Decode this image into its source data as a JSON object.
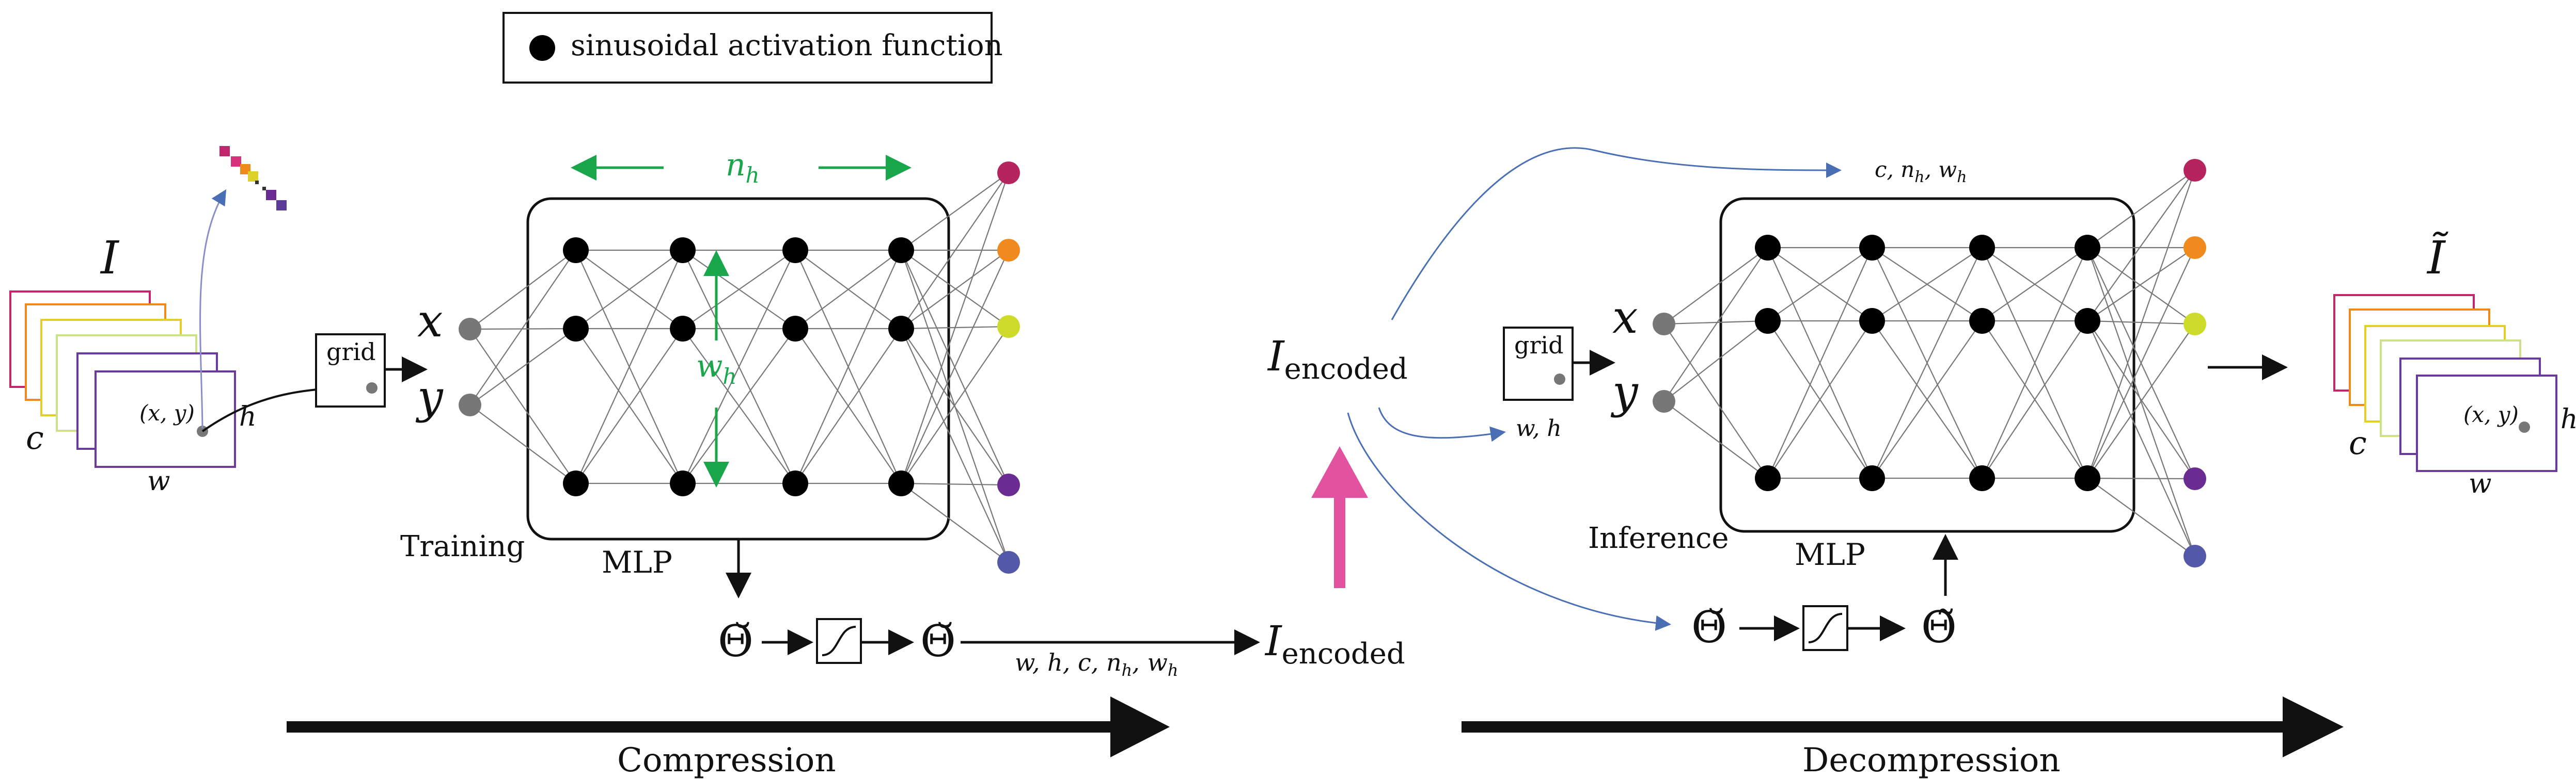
{
  "legend": {
    "label": "sinusoidal activation function"
  },
  "left": {
    "image_symbol": "I",
    "channel_label": "c",
    "width_label": "w",
    "height_label": "h",
    "coord_label": "(x, y)",
    "grid_label": "grid",
    "x_label": "x",
    "y_label": "y",
    "nh_label": "n",
    "nh_sub": "h",
    "wh_label": "w",
    "wh_sub": "h",
    "training_label": "Training",
    "mlp_label": "MLP",
    "theta_label": "Θ̆",
    "params_label": "w,  h,  c,  n",
    "params_sub": "h",
    "params_tail": ",  w",
    "params_tail_sub": "h",
    "encoded_label": "I",
    "encoded_sub": "encoded",
    "section_label": "Compression"
  },
  "right": {
    "encoded_label": "I",
    "encoded_sub": "encoded",
    "meta_label": "c, n",
    "meta_sub": "h",
    "meta_tail": ", w",
    "meta_tail_sub": "h",
    "wh_label": "w, h",
    "grid_label": "grid",
    "x_label": "x",
    "y_label": "y",
    "inference_label": "Inference",
    "mlp_label": "MLP",
    "theta_in_label": "Θ̆",
    "theta_out_label": "Θ̃",
    "image_symbol": "Ĩ",
    "channel_label": "c",
    "width_label": "w",
    "height_label": "h",
    "coord_label": "(x, y)",
    "section_label": "Decompression"
  },
  "colors": {
    "output_nodes": [
      "#b5245e",
      "#f08a1e",
      "#cddc2a",
      "#6a2c91",
      "#5458a8"
    ],
    "frames": [
      "#c2266c",
      "#ee8a1c",
      "#e2cf2a",
      "#cde08a",
      "#6a3b9c"
    ],
    "accent_green": "#1aa64a",
    "accent_pink": "#e2529f",
    "accent_blue": "#4a6fb5"
  }
}
